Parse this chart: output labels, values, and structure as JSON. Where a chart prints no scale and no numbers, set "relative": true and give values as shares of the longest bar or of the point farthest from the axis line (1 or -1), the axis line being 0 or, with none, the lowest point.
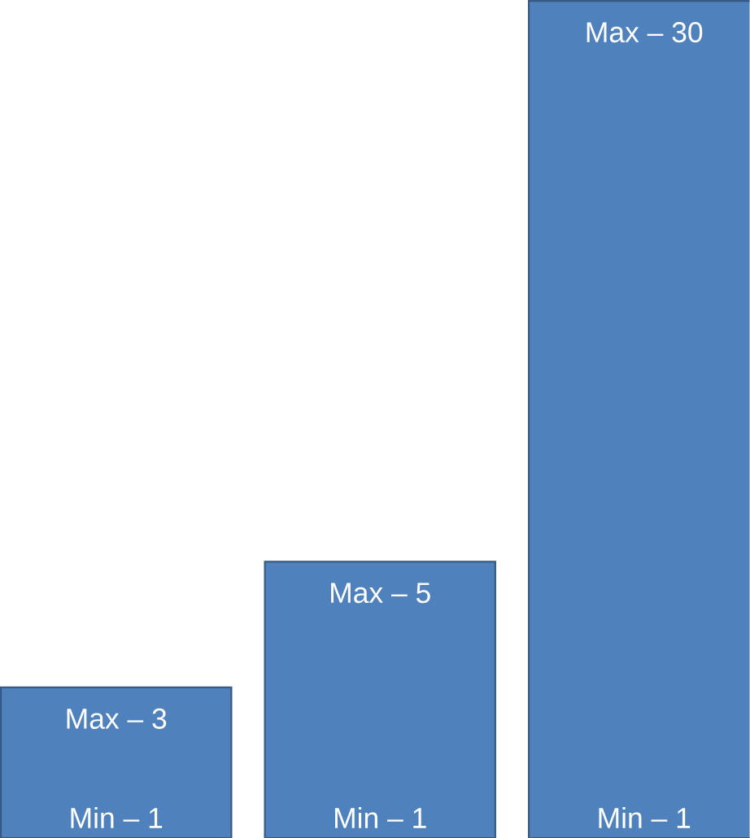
{
  "chart_data": {
    "type": "bar",
    "relative": true,
    "categories": [
      null,
      null,
      null
    ],
    "values": [
      0.18,
      0.33,
      1
    ],
    "color": "#4f81bd",
    "annotations": [
      "Max – 3",
      "Min – 1",
      "Max – 5",
      "Min – 1",
      "Max – 30",
      "Min – 1"
    ]
  }
}
